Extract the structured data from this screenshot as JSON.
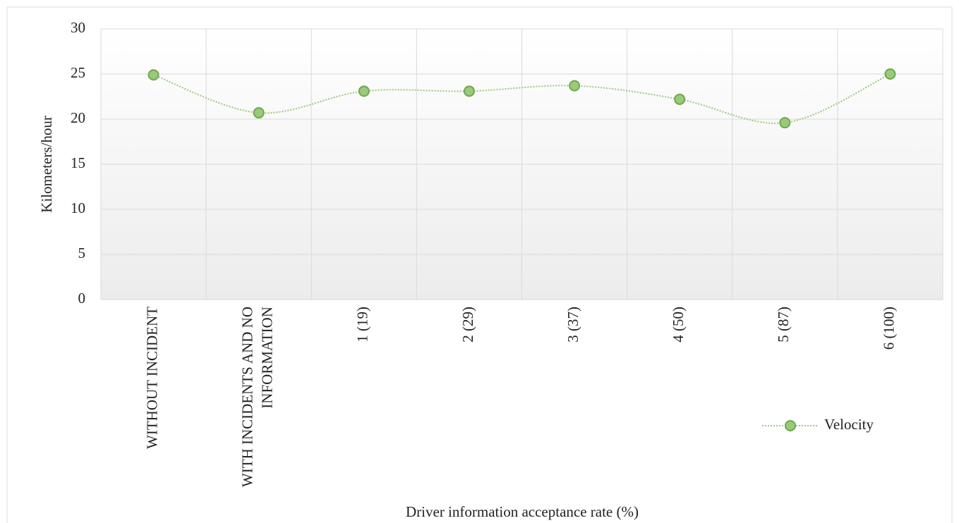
{
  "chart_data": {
    "type": "line",
    "x_label": "Driver information acceptance rate (%)",
    "y_label": "Kilometers/hour",
    "categories": [
      "WITHOUT INCIDENT",
      "WITH INCIDENTS AND NO INFORMATION",
      "1 (19)",
      "2 (29)",
      "3 (37)",
      "4 (50)",
      "5 (87)",
      "6 (100)"
    ],
    "series": [
      {
        "name": "Velocity",
        "color": "#9bc97b",
        "values": [
          24.9,
          20.7,
          23.1,
          23.1,
          23.7,
          22.2,
          19.6,
          25.0
        ]
      }
    ],
    "ylim": [
      0,
      30
    ],
    "yticks": [
      0,
      5,
      10,
      15,
      20,
      25,
      30
    ],
    "grid": true,
    "legend": "right",
    "smooth": true
  }
}
